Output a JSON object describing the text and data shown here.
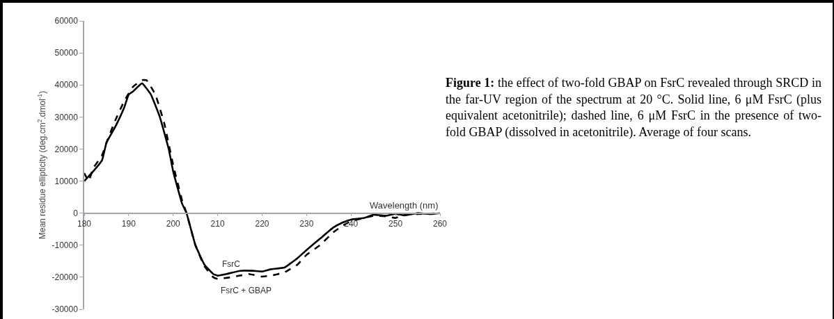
{
  "chart_data": {
    "type": "line",
    "xlabel": "Wavelength (nm)",
    "ylabel": "Mean residue ellipticity (deg.cm$^{2}$.dmol$^{-1}$)",
    "xlim": [
      180,
      260
    ],
    "xticks": [
      180,
      190,
      200,
      210,
      220,
      230,
      240,
      250,
      260
    ],
    "ylim": [
      -30000,
      60000
    ],
    "yticks": [
      -30000,
      -20000,
      -10000,
      0,
      10000,
      20000,
      30000,
      40000,
      50000,
      60000
    ],
    "grid": false,
    "marker": "none",
    "annotations": [
      "Figure 1: the effect of two-fold GBAP on FsrC revealed through SRCD in the far-UV region of the spectrum at 20 °C. Solid line, 6 μM FsrC (plus equivalent acetonitrile); dashed line, 6 μM FsrC in the presence of two-fold GBAP (dissolved in acetonitrile). Average of four scans."
    ],
    "series": [
      {
        "name": "FsrC",
        "color": "#000000",
        "line_style": "solid",
        "x": [
          180,
          182,
          184,
          185,
          187,
          189,
          190,
          191,
          193,
          195,
          197,
          199,
          200,
          202,
          203,
          205,
          207,
          209,
          210,
          212,
          215,
          218,
          220,
          222,
          225,
          228,
          230,
          233,
          236,
          238,
          240,
          243,
          245,
          248,
          250,
          252,
          255,
          258,
          260
        ],
        "values": [
          10000,
          13000,
          16500,
          22000,
          27000,
          33000,
          37000,
          38000,
          40500,
          37000,
          30000,
          20000,
          13000,
          3000,
          0,
          -10000,
          -16000,
          -19000,
          -19500,
          -19000,
          -18000,
          -18000,
          -18200,
          -17500,
          -17000,
          -14000,
          -11500,
          -8000,
          -4500,
          -3000,
          -2000,
          -1500,
          -500,
          -800,
          -200,
          -700,
          0,
          -300,
          0
        ]
      },
      {
        "name": "FsrC + GBAP",
        "color": "#000000",
        "line_style": "dashed",
        "x": [
          180,
          181,
          182,
          184,
          185,
          187,
          189,
          191,
          193,
          194,
          196,
          198,
          200,
          202,
          203,
          205,
          207,
          209,
          210,
          213,
          215,
          217,
          220,
          222,
          225,
          228,
          230,
          233,
          236,
          238,
          240,
          243,
          245,
          248,
          250,
          252,
          255,
          260
        ],
        "values": [
          12500,
          10000,
          14000,
          18000,
          22000,
          29000,
          35000,
          39500,
          41500,
          41500,
          37000,
          28000,
          15000,
          4000,
          0,
          -10000,
          -16500,
          -20000,
          -20500,
          -20000,
          -19500,
          -19000,
          -19800,
          -19500,
          -18500,
          -16000,
          -13000,
          -10000,
          -6000,
          -4000,
          -2500,
          -1500,
          -800,
          -1000,
          -1500,
          -500,
          -300,
          0
        ]
      }
    ]
  }
}
